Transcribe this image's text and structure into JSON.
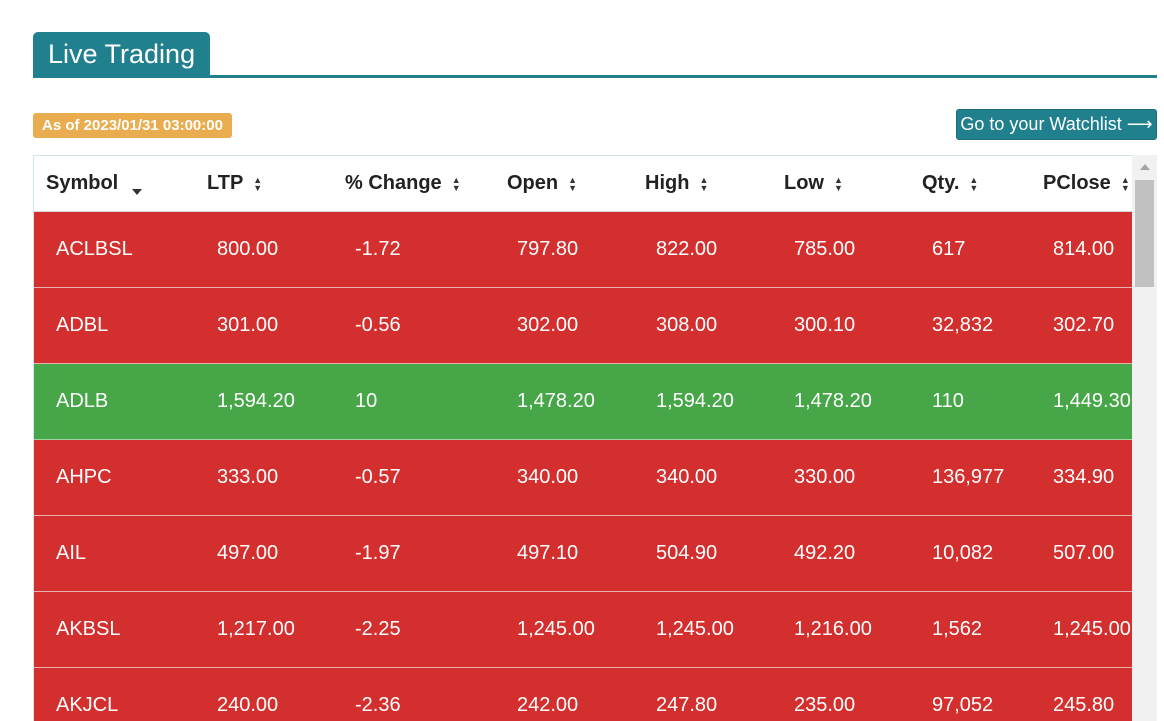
{
  "header": {
    "title": "Live Trading"
  },
  "as_of": "As of 2023/01/31 03:00:00",
  "watchlist_button": "Go to your Watchlist ⟶",
  "table": {
    "columns": [
      "Symbol",
      "LTP",
      "% Change",
      "Open",
      "High",
      "Low",
      "Qty.",
      "PClose"
    ],
    "rows": [
      {
        "trend": "down",
        "cells": [
          "ACLBSL",
          "800.00",
          "-1.72",
          "797.80",
          "822.00",
          "785.00",
          "617",
          "814.00"
        ]
      },
      {
        "trend": "down",
        "cells": [
          "ADBL",
          "301.00",
          "-0.56",
          "302.00",
          "308.00",
          "300.10",
          "32,832",
          "302.70"
        ]
      },
      {
        "trend": "up",
        "cells": [
          "ADLB",
          "1,594.20",
          "10",
          "1,478.20",
          "1,594.20",
          "1,478.20",
          "110",
          "1,449.30"
        ]
      },
      {
        "trend": "down",
        "cells": [
          "AHPC",
          "333.00",
          "-0.57",
          "340.00",
          "340.00",
          "330.00",
          "136,977",
          "334.90"
        ]
      },
      {
        "trend": "down",
        "cells": [
          "AIL",
          "497.00",
          "-1.97",
          "497.10",
          "504.90",
          "492.20",
          "10,082",
          "507.00"
        ]
      },
      {
        "trend": "down",
        "cells": [
          "AKBSL",
          "1,217.00",
          "-2.25",
          "1,245.00",
          "1,245.00",
          "1,216.00",
          "1,562",
          "1,245.00"
        ]
      },
      {
        "trend": "down",
        "cells": [
          "AKJCL",
          "240.00",
          "-2.36",
          "242.00",
          "247.80",
          "235.00",
          "97,052",
          "245.80"
        ]
      }
    ]
  },
  "colors": {
    "accent": "#20808d",
    "badge": "#e9ad4f",
    "down": "#d32f2f",
    "up": "#46a648"
  },
  "icons": {
    "sort_active": "caret-down-icon",
    "sort": "sort-updown-icon"
  }
}
